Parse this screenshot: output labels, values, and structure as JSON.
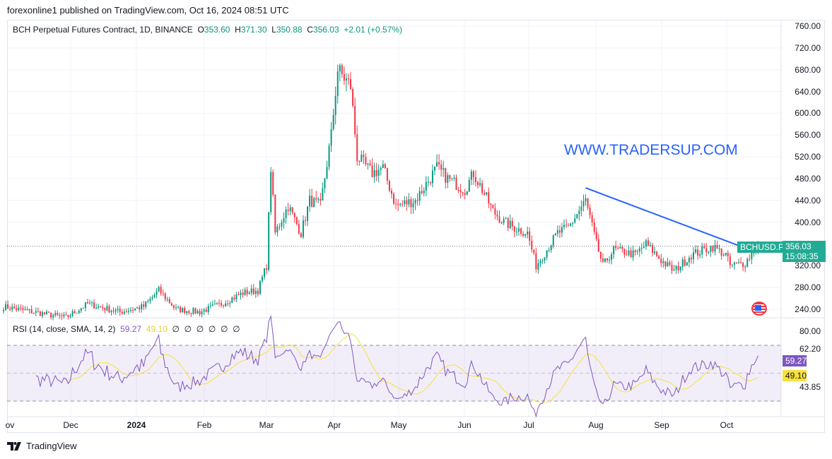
{
  "header": {
    "published": "forexonline1 published on TradingView.com, Oct 16, 2024 08:51 UTC"
  },
  "legend": {
    "symbol": "BCH Perpetual Futures Contract, 1D, BINANCE",
    "o_label": "O",
    "o": "353.60",
    "h_label": "H",
    "h": "371.30",
    "l_label": "L",
    "l": "350.88",
    "c_label": "C",
    "c": "356.03",
    "change": "+2.01 (+0.57%)"
  },
  "rsi_legend": {
    "label": "RSI (14, close, SMA, 14, 2)",
    "rsi": "59.27",
    "sma": "49.10",
    "empty": [
      "∅",
      "∅",
      "∅",
      "∅",
      "∅",
      "∅"
    ]
  },
  "watermark": "WWW.TRADERSUP.COM",
  "price_axis": [
    "760.00",
    "720.00",
    "680.00",
    "640.00",
    "600.00",
    "560.00",
    "520.00",
    "480.00",
    "440.00",
    "400.00",
    "320.00",
    "280.00",
    "240.00"
  ],
  "rsi_axis": [
    "80.00",
    "62.20",
    "43.85"
  ],
  "last_price": {
    "symbol": "BCHUSD.P",
    "price": "356.03",
    "countdown": "15:08:35"
  },
  "rsi_tags": {
    "rsi": "59.27",
    "sma": "49.10"
  },
  "time_axis": [
    "ov",
    "Dec",
    "2024",
    "Feb",
    "Mar",
    "Apr",
    "May",
    "Jun",
    "Jul",
    "Aug",
    "Sep",
    "Oct"
  ],
  "footer": {
    "brand": "TradingView"
  },
  "colors": {
    "up": "#089981",
    "down": "#f23645",
    "rsi": "#7e57c2",
    "sma": "#f7e13c",
    "trendline": "#2962ff"
  },
  "chart_data": {
    "type": "candlestick",
    "ylim": [
      240,
      760
    ],
    "rsi_levels": [
      70,
      50,
      30
    ],
    "closes": [
      [
        "2023-11-01",
        245
      ],
      [
        "2023-11-15",
        235
      ],
      [
        "2023-11-30",
        225
      ],
      [
        "2023-12-10",
        250
      ],
      [
        "2023-12-25",
        235
      ],
      [
        "2024-01-05",
        245
      ],
      [
        "2024-01-12",
        275
      ],
      [
        "2024-01-20",
        240
      ],
      [
        "2024-01-31",
        235
      ],
      [
        "2024-02-10",
        250
      ],
      [
        "2024-02-20",
        270
      ],
      [
        "2024-02-27",
        275
      ],
      [
        "2024-03-02",
        320
      ],
      [
        "2024-03-04",
        500
      ],
      [
        "2024-03-06",
        380
      ],
      [
        "2024-03-12",
        430
      ],
      [
        "2024-03-18",
        380
      ],
      [
        "2024-03-22",
        440
      ],
      [
        "2024-03-27",
        430
      ],
      [
        "2024-04-01",
        560
      ],
      [
        "2024-04-04",
        680
      ],
      [
        "2024-04-08",
        660
      ],
      [
        "2024-04-10",
        650
      ],
      [
        "2024-04-13",
        520
      ],
      [
        "2024-04-20",
        490
      ],
      [
        "2024-04-25",
        500
      ],
      [
        "2024-05-01",
        430
      ],
      [
        "2024-05-10",
        440
      ],
      [
        "2024-05-20",
        500
      ],
      [
        "2024-05-25",
        480
      ],
      [
        "2024-06-02",
        460
      ],
      [
        "2024-06-06",
        490
      ],
      [
        "2024-06-10",
        460
      ],
      [
        "2024-06-15",
        420
      ],
      [
        "2024-06-20",
        400
      ],
      [
        "2024-06-25",
        390
      ],
      [
        "2024-07-01",
        380
      ],
      [
        "2024-07-05",
        320
      ],
      [
        "2024-07-10",
        350
      ],
      [
        "2024-07-15",
        380
      ],
      [
        "2024-07-20",
        390
      ],
      [
        "2024-07-28",
        440
      ],
      [
        "2024-08-02",
        360
      ],
      [
        "2024-08-05",
        320
      ],
      [
        "2024-08-10",
        350
      ],
      [
        "2024-08-20",
        340
      ],
      [
        "2024-08-25",
        360
      ],
      [
        "2024-09-01",
        330
      ],
      [
        "2024-09-07",
        310
      ],
      [
        "2024-09-15",
        340
      ],
      [
        "2024-09-25",
        355
      ],
      [
        "2024-10-01",
        340
      ],
      [
        "2024-10-03",
        320
      ],
      [
        "2024-10-10",
        325
      ],
      [
        "2024-10-15",
        354
      ],
      [
        "2024-10-16",
        356.03
      ]
    ],
    "trendline": [
      [
        "2024-07-28",
        463
      ],
      [
        "2024-10-15",
        345
      ]
    ]
  }
}
